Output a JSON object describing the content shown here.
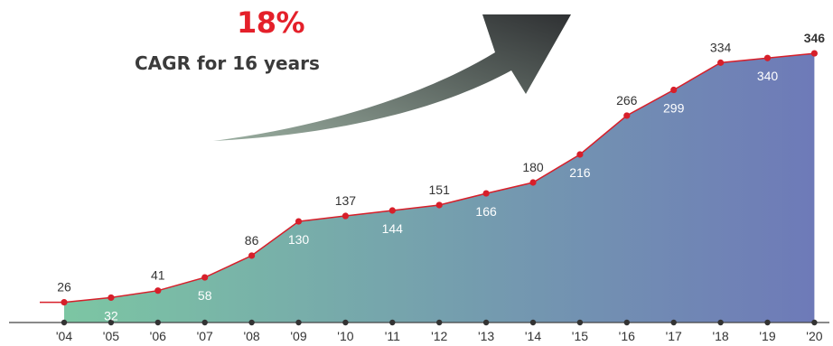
{
  "headline": {
    "cagr_value": "18%",
    "cagr_caption": "CAGR for 16 years"
  },
  "colors": {
    "line": "#d71f2a",
    "area_start": "#7cc6a3",
    "area_end": "#6e7ab8",
    "arrow_dark": "#2f3133",
    "arrow_light": "#9aaea0",
    "axis": "#444444"
  },
  "chart_data": {
    "type": "area",
    "title": "",
    "xlabel": "",
    "ylabel": "",
    "categories": [
      "'04",
      "'05",
      "'06",
      "'07",
      "'08",
      "'09",
      "'10",
      "'11",
      "'12",
      "'13",
      "'14",
      "'15",
      "'16",
      "'17",
      "'18",
      "'19",
      "'20"
    ],
    "series": [
      {
        "values": [
          26,
          32,
          41,
          58,
          86,
          130,
          137,
          144,
          151,
          166,
          180,
          216,
          266,
          299,
          334,
          340,
          346
        ]
      }
    ],
    "data_label_position": [
      "above",
      "below",
      "above",
      "below",
      "above",
      "below",
      "above",
      "below",
      "above",
      "below",
      "above",
      "below",
      "above",
      "below",
      "above",
      "below",
      "above"
    ],
    "last_label_bold": true,
    "ylim": [
      0,
      360
    ],
    "grid": false,
    "legend": "none"
  }
}
